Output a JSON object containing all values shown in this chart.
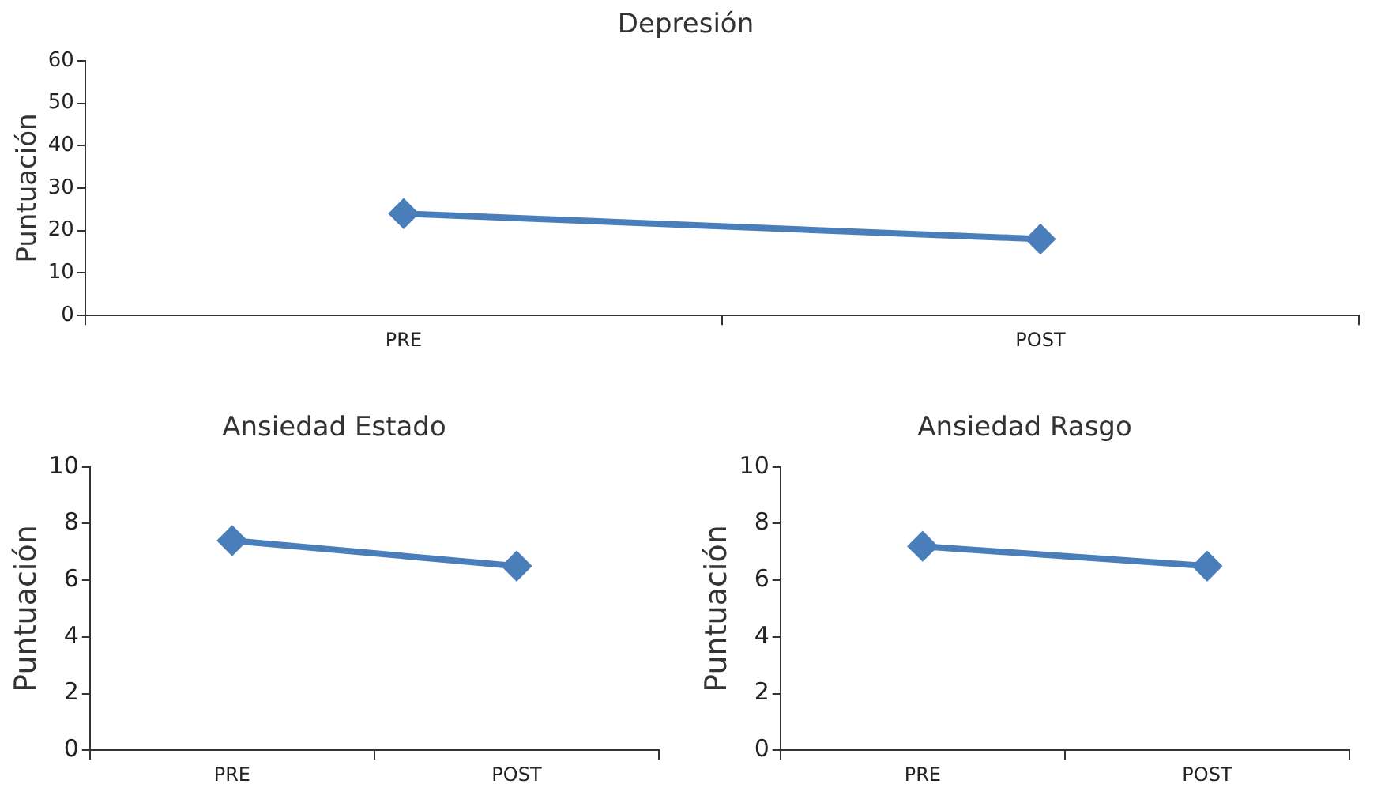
{
  "chart_data": [
    {
      "type": "line",
      "title": "Depresión",
      "ylabel": "Puntuación",
      "categories": [
        "PRE",
        "POST"
      ],
      "series": [
        {
          "color": "#4a7ebb",
          "values": [
            24,
            18
          ]
        }
      ],
      "ylim": [
        0,
        60
      ],
      "yticks": [
        0,
        10,
        20,
        30,
        40,
        50,
        60
      ],
      "grid": false,
      "legend": false,
      "marker": "diamond",
      "line_style": "solid"
    },
    {
      "type": "line",
      "title": "Ansiedad Estado",
      "ylabel": "Puntuación",
      "categories": [
        "PRE",
        "POST"
      ],
      "series": [
        {
          "color": "#4a7ebb",
          "values": [
            7.4,
            6.5
          ]
        }
      ],
      "ylim": [
        0,
        10
      ],
      "yticks": [
        0,
        2,
        4,
        6,
        8,
        10
      ],
      "grid": false,
      "legend": false,
      "marker": "diamond",
      "line_style": "solid"
    },
    {
      "type": "line",
      "title": "Ansiedad Rasgo",
      "ylabel": "Puntuación",
      "categories": [
        "PRE",
        "POST"
      ],
      "series": [
        {
          "color": "#4a7ebb",
          "values": [
            7.2,
            6.5
          ]
        }
      ],
      "ylim": [
        0,
        10
      ],
      "yticks": [
        0,
        2,
        4,
        6,
        8,
        10
      ],
      "grid": false,
      "legend": false,
      "marker": "diamond",
      "line_style": "solid"
    }
  ]
}
